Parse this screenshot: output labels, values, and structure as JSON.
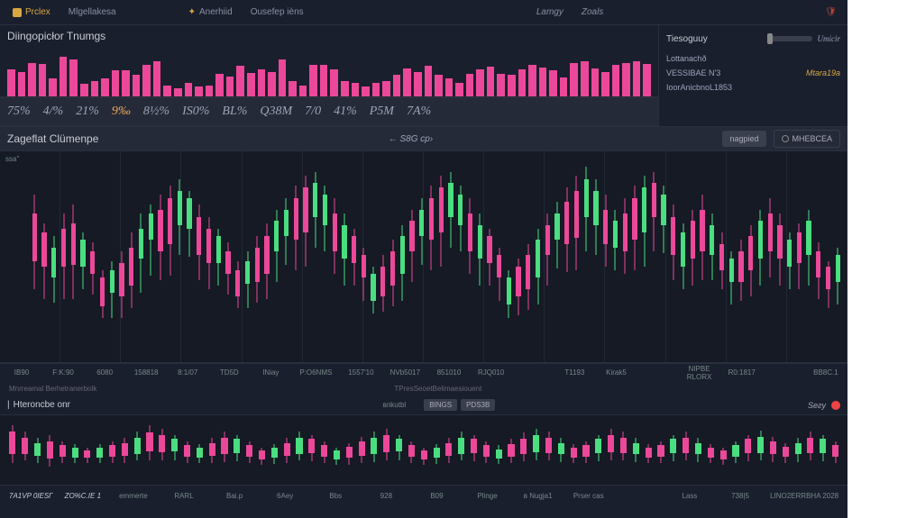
{
  "colors": {
    "bg": "#1a1f2e",
    "panel": "#151a25",
    "pink": "#ec4899",
    "green": "#4ade80",
    "accent": "#d8a840",
    "text": "#c8ccd4",
    "muted": "#888fa0"
  },
  "topbar": {
    "tabs": [
      {
        "label": "Prclex",
        "active": true
      },
      {
        "label": "Mlgellakesa",
        "active": false
      }
    ],
    "mid_tabs": [
      {
        "label": "Anerhiid",
        "icon": true
      },
      {
        "label": "Ousefep ièns",
        "icon": false
      }
    ],
    "right_tabs": [
      "Lamgy",
      "Zoals"
    ]
  },
  "section_title": "Diingopicłor Tnumgs",
  "volume_bars": [
    60,
    55,
    75,
    72,
    40,
    88,
    82,
    28,
    35,
    40,
    58,
    58,
    48,
    70,
    78,
    25,
    18,
    30,
    22,
    25,
    50,
    45,
    68,
    52,
    60,
    55,
    82,
    35,
    25,
    70,
    70,
    60,
    35,
    30,
    22,
    30,
    35,
    48,
    62,
    55,
    68,
    48,
    40,
    30,
    50,
    60,
    66,
    50,
    48,
    60,
    70,
    65,
    58,
    42,
    75,
    78,
    62,
    55,
    70,
    74,
    78,
    72
  ],
  "stats": [
    {
      "label": "75%",
      "hl": false
    },
    {
      "label": "4/%",
      "hl": false
    },
    {
      "label": "21%",
      "hl": false
    },
    {
      "label": "9‰",
      "hl": true
    },
    {
      "label": "8½%",
      "hl": false
    },
    {
      "label": "IS0%",
      "hl": false
    },
    {
      "label": "BL%",
      "hl": false
    },
    {
      "label": "Q38M",
      "hl": false
    },
    {
      "label": "7/0",
      "hl": false
    },
    {
      "label": "41%",
      "hl": false
    },
    {
      "label": "P5M",
      "hl": false
    },
    {
      "label": "7A%",
      "hl": false
    }
  ],
  "right_panel": {
    "header": "Tiesoguuy",
    "badge": "Umicìr",
    "items": [
      {
        "label": "Lottanachð",
        "value": ""
      },
      {
        "label": "VESSIBAE N'3",
        "value": "Mtara19a"
      },
      {
        "label": "IoorAnicbnoL1853",
        "value": ""
      }
    ]
  },
  "toolbar": {
    "left": "Zageflat Clümenpe",
    "mid": "← S8G  cр›",
    "btn1": "nagpied",
    "btn2": "MHEBCEA"
  },
  "main_chart": {
    "type": "candlestick",
    "y_label": "ssa”",
    "background": "#151a25",
    "grid_color": "#222836",
    "grid_columns": 14,
    "candles": [
      {
        "c": "pink",
        "wt": 20,
        "wh": 50,
        "bt": 30,
        "bh": 25
      },
      {
        "c": "pink",
        "wt": 35,
        "wh": 40,
        "bt": 40,
        "bh": 18
      },
      {
        "c": "green",
        "wt": 42,
        "wh": 35,
        "bt": 48,
        "bh": 16
      },
      {
        "c": "pink",
        "wt": 30,
        "wh": 45,
        "bt": 38,
        "bh": 20
      },
      {
        "c": "pink",
        "wt": 25,
        "wh": 50,
        "bt": 35,
        "bh": 22
      },
      {
        "c": "green",
        "wt": 40,
        "wh": 30,
        "bt": 44,
        "bh": 14
      },
      {
        "c": "pink",
        "wt": 45,
        "wh": 28,
        "bt": 50,
        "bh": 12
      },
      {
        "c": "pink",
        "wt": 60,
        "wh": 25,
        "bt": 64,
        "bh": 15
      },
      {
        "c": "green",
        "wt": 55,
        "wh": 30,
        "bt": 60,
        "bh": 12
      },
      {
        "c": "pink",
        "wt": 50,
        "wh": 35,
        "bt": 56,
        "bh": 18
      },
      {
        "c": "pink",
        "wt": 40,
        "wh": 40,
        "bt": 48,
        "bh": 20
      },
      {
        "c": "green",
        "wt": 30,
        "wh": 42,
        "bt": 38,
        "bh": 16
      },
      {
        "c": "green",
        "wt": 25,
        "wh": 38,
        "bt": 30,
        "bh": 14
      },
      {
        "c": "pink",
        "wt": 20,
        "wh": 45,
        "bt": 28,
        "bh": 22
      },
      {
        "c": "pink",
        "wt": 15,
        "wh": 48,
        "bt": 22,
        "bh": 24
      },
      {
        "c": "green",
        "wt": 12,
        "wh": 40,
        "bt": 18,
        "bh": 18
      },
      {
        "c": "green",
        "wt": 18,
        "wh": 35,
        "bt": 22,
        "bh": 16
      },
      {
        "c": "pink",
        "wt": 25,
        "wh": 40,
        "bt": 32,
        "bh": 20
      },
      {
        "c": "pink",
        "wt": 32,
        "wh": 38,
        "bt": 38,
        "bh": 18
      },
      {
        "c": "green",
        "wt": 38,
        "wh": 30,
        "bt": 42,
        "bh": 14
      },
      {
        "c": "pink",
        "wt": 45,
        "wh": 28,
        "bt": 50,
        "bh": 12
      },
      {
        "c": "pink",
        "wt": 55,
        "wh": 25,
        "bt": 60,
        "bh": 14
      },
      {
        "c": "green",
        "wt": 50,
        "wh": 30,
        "bt": 55,
        "bh": 12
      },
      {
        "c": "pink",
        "wt": 42,
        "wh": 35,
        "bt": 48,
        "bh": 18
      },
      {
        "c": "pink",
        "wt": 35,
        "wh": 40,
        "bt": 42,
        "bh": 20
      },
      {
        "c": "green",
        "wt": 28,
        "wh": 38,
        "bt": 34,
        "bh": 16
      },
      {
        "c": "green",
        "wt": 22,
        "wh": 35,
        "bt": 28,
        "bh": 14
      },
      {
        "c": "pink",
        "wt": 15,
        "wh": 45,
        "bt": 22,
        "bh": 22
      },
      {
        "c": "pink",
        "wt": 10,
        "wh": 48,
        "bt": 16,
        "bh": 24
      },
      {
        "c": "green",
        "wt": 8,
        "wh": 40,
        "bt": 14,
        "bh": 18
      },
      {
        "c": "green",
        "wt": 15,
        "wh": 35,
        "bt": 20,
        "bh": 16
      },
      {
        "c": "pink",
        "wt": 22,
        "wh": 40,
        "bt": 30,
        "bh": 20
      },
      {
        "c": "green",
        "wt": 30,
        "wh": 38,
        "bt": 36,
        "bh": 18
      },
      {
        "c": "pink",
        "wt": 38,
        "wh": 30,
        "bt": 42,
        "bh": 14
      },
      {
        "c": "pink",
        "wt": 48,
        "wh": 28,
        "bt": 52,
        "bh": 12
      },
      {
        "c": "green",
        "wt": 58,
        "wh": 25,
        "bt": 62,
        "bh": 14
      },
      {
        "c": "pink",
        "wt": 52,
        "wh": 30,
        "bt": 58,
        "bh": 16
      },
      {
        "c": "pink",
        "wt": 44,
        "wh": 35,
        "bt": 50,
        "bh": 18
      },
      {
        "c": "green",
        "wt": 36,
        "wh": 40,
        "bt": 42,
        "bh": 20
      },
      {
        "c": "pink",
        "wt": 28,
        "wh": 38,
        "bt": 34,
        "bh": 16
      },
      {
        "c": "green",
        "wt": 22,
        "wh": 35,
        "bt": 28,
        "bh": 14
      },
      {
        "c": "pink",
        "wt": 15,
        "wh": 45,
        "bt": 22,
        "bh": 22
      },
      {
        "c": "pink",
        "wt": 10,
        "wh": 48,
        "bt": 16,
        "bh": 24
      },
      {
        "c": "green",
        "wt": 8,
        "wh": 40,
        "bt": 14,
        "bh": 18
      },
      {
        "c": "green",
        "wt": 15,
        "wh": 35,
        "bt": 20,
        "bh": 16
      },
      {
        "c": "pink",
        "wt": 22,
        "wh": 40,
        "bt": 30,
        "bh": 20
      },
      {
        "c": "green",
        "wt": 30,
        "wh": 38,
        "bt": 36,
        "bh": 18
      },
      {
        "c": "pink",
        "wt": 38,
        "wh": 30,
        "bt": 42,
        "bh": 14
      },
      {
        "c": "pink",
        "wt": 48,
        "wh": 28,
        "bt": 52,
        "bh": 12
      },
      {
        "c": "green",
        "wt": 60,
        "wh": 25,
        "bt": 64,
        "bh": 14
      },
      {
        "c": "pink",
        "wt": 54,
        "wh": 30,
        "bt": 58,
        "bh": 16
      },
      {
        "c": "pink",
        "wt": 46,
        "wh": 35,
        "bt": 52,
        "bh": 18
      },
      {
        "c": "green",
        "wt": 38,
        "wh": 40,
        "bt": 44,
        "bh": 20
      },
      {
        "c": "pink",
        "wt": 30,
        "wh": 38,
        "bt": 36,
        "bh": 16
      },
      {
        "c": "green",
        "wt": 24,
        "wh": 35,
        "bt": 30,
        "bh": 14
      },
      {
        "c": "pink",
        "wt": 16,
        "wh": 45,
        "bt": 24,
        "bh": 22
      },
      {
        "c": "pink",
        "wt": 10,
        "wh": 50,
        "bt": 18,
        "bh": 25
      },
      {
        "c": "green",
        "wt": 5,
        "wh": 45,
        "bt": 12,
        "bh": 20
      },
      {
        "c": "green",
        "wt": 12,
        "wh": 40,
        "bt": 18,
        "bh": 18
      },
      {
        "c": "pink",
        "wt": 20,
        "wh": 38,
        "bt": 28,
        "bh": 18
      },
      {
        "c": "green",
        "wt": 28,
        "wh": 32,
        "bt": 34,
        "bh": 14
      },
      {
        "c": "pink",
        "wt": 22,
        "wh": 40,
        "bt": 30,
        "bh": 20
      },
      {
        "c": "pink",
        "wt": 15,
        "wh": 45,
        "bt": 22,
        "bh": 22
      },
      {
        "c": "green",
        "wt": 10,
        "wh": 48,
        "bt": 16,
        "bh": 24
      },
      {
        "c": "pink",
        "wt": 8,
        "wh": 42,
        "bt": 14,
        "bh": 18
      },
      {
        "c": "green",
        "wt": 15,
        "wh": 36,
        "bt": 20,
        "bh": 16
      },
      {
        "c": "pink",
        "wt": 25,
        "wh": 40,
        "bt": 32,
        "bh": 20
      },
      {
        "c": "green",
        "wt": 35,
        "wh": 35,
        "bt": 40,
        "bh": 18
      },
      {
        "c": "pink",
        "wt": 28,
        "wh": 40,
        "bt": 34,
        "bh": 20
      },
      {
        "c": "pink",
        "wt": 20,
        "wh": 45,
        "bt": 28,
        "bh": 22
      },
      {
        "c": "green",
        "wt": 30,
        "wh": 35,
        "bt": 36,
        "bh": 16
      },
      {
        "c": "pink",
        "wt": 40,
        "wh": 30,
        "bt": 46,
        "bh": 14
      },
      {
        "c": "green",
        "wt": 50,
        "wh": 28,
        "bt": 54,
        "bh": 12
      },
      {
        "c": "pink",
        "wt": 44,
        "wh": 32,
        "bt": 50,
        "bh": 16
      },
      {
        "c": "pink",
        "wt": 36,
        "wh": 38,
        "bt": 42,
        "bh": 18
      },
      {
        "c": "green",
        "wt": 28,
        "wh": 40,
        "bt": 34,
        "bh": 20
      },
      {
        "c": "pink",
        "wt": 22,
        "wh": 42,
        "bt": 30,
        "bh": 20
      },
      {
        "c": "pink",
        "wt": 30,
        "wh": 38,
        "bt": 36,
        "bh": 18
      },
      {
        "c": "green",
        "wt": 40,
        "wh": 30,
        "bt": 44,
        "bh": 14
      },
      {
        "c": "pink",
        "wt": 35,
        "wh": 35,
        "bt": 40,
        "bh": 16
      },
      {
        "c": "green",
        "wt": 28,
        "wh": 40,
        "bt": 34,
        "bh": 18
      },
      {
        "c": "pink",
        "wt": 45,
        "wh": 30,
        "bt": 50,
        "bh": 14
      },
      {
        "c": "pink",
        "wt": 55,
        "wh": 25,
        "bt": 58,
        "bh": 12
      },
      {
        "c": "green",
        "wt": 48,
        "wh": 30,
        "bt": 52,
        "bh": 14
      }
    ]
  },
  "xaxis_main": [
    "IB90",
    "F:K:90",
    "6080",
    "158818",
    "8:1/07",
    "TD5D",
    "INiay",
    "P:O6NMS",
    "1557'10",
    "NVb5017",
    "851010",
    "RJQ010",
    "",
    "T1193",
    "Kirak5",
    "",
    "NIPBE RLORX",
    "R0:1817",
    "",
    "BB8C.1"
  ],
  "footer_labels": {
    "left": "Mnrreamal Berhetranerbolk",
    "mid": "TPresSeoetВelіmaesiouent"
  },
  "panel2": {
    "title": "Hteroncbe onr",
    "mid_label": "впkutbl",
    "chips": [
      "BINGS",
      "PDS3B"
    ],
    "right_label": "Sегу"
  },
  "bottom_chart": {
    "type": "candlestick",
    "background": "#151a25",
    "candles": [
      {
        "c": "pink",
        "wt": 10,
        "wh": 60,
        "bt": 20,
        "bh": 35
      },
      {
        "c": "pink",
        "wt": 20,
        "wh": 45,
        "bt": 30,
        "bh": 25
      },
      {
        "c": "green",
        "wt": 30,
        "wh": 40,
        "bt": 38,
        "bh": 20
      },
      {
        "c": "pink",
        "wt": 25,
        "wh": 50,
        "bt": 35,
        "bh": 28
      },
      {
        "c": "pink",
        "wt": 35,
        "wh": 35,
        "bt": 42,
        "bh": 18
      },
      {
        "c": "green",
        "wt": 40,
        "wh": 30,
        "bt": 46,
        "bh": 15
      },
      {
        "c": "pink",
        "wt": 45,
        "wh": 25,
        "bt": 50,
        "bh": 12
      },
      {
        "c": "green",
        "wt": 40,
        "wh": 30,
        "bt": 46,
        "bh": 15
      },
      {
        "c": "pink",
        "wt": 35,
        "wh": 35,
        "bt": 42,
        "bh": 18
      },
      {
        "c": "pink",
        "wt": 30,
        "wh": 40,
        "bt": 38,
        "bh": 20
      },
      {
        "c": "green",
        "wt": 20,
        "wh": 45,
        "bt": 30,
        "bh": 25
      },
      {
        "c": "pink",
        "wt": 10,
        "wh": 55,
        "bt": 22,
        "bh": 30
      },
      {
        "c": "pink",
        "wt": 15,
        "wh": 50,
        "bt": 25,
        "bh": 28
      },
      {
        "c": "green",
        "wt": 25,
        "wh": 40,
        "bt": 32,
        "bh": 20
      },
      {
        "c": "pink",
        "wt": 35,
        "wh": 35,
        "bt": 42,
        "bh": 18
      },
      {
        "c": "green",
        "wt": 40,
        "wh": 30,
        "bt": 46,
        "bh": 15
      },
      {
        "c": "pink",
        "wt": 30,
        "wh": 40,
        "bt": 38,
        "bh": 20
      },
      {
        "c": "pink",
        "wt": 20,
        "wh": 48,
        "bt": 30,
        "bh": 25
      },
      {
        "c": "green",
        "wt": 25,
        "wh": 42,
        "bt": 32,
        "bh": 22
      },
      {
        "c": "pink",
        "wt": 35,
        "wh": 35,
        "bt": 42,
        "bh": 18
      },
      {
        "c": "pink",
        "wt": 45,
        "wh": 28,
        "bt": 50,
        "bh": 14
      },
      {
        "c": "green",
        "wt": 40,
        "wh": 32,
        "bt": 46,
        "bh": 16
      },
      {
        "c": "pink",
        "wt": 30,
        "wh": 40,
        "bt": 38,
        "bh": 20
      },
      {
        "c": "green",
        "wt": 20,
        "wh": 45,
        "bt": 30,
        "bh": 25
      },
      {
        "c": "pink",
        "wt": 25,
        "wh": 42,
        "bt": 32,
        "bh": 22
      },
      {
        "c": "pink",
        "wt": 35,
        "wh": 35,
        "bt": 42,
        "bh": 18
      },
      {
        "c": "green",
        "wt": 45,
        "wh": 28,
        "bt": 50,
        "bh": 14
      },
      {
        "c": "pink",
        "wt": 38,
        "wh": 35,
        "bt": 44,
        "bh": 18
      },
      {
        "c": "pink",
        "wt": 28,
        "wh": 42,
        "bt": 36,
        "bh": 22
      },
      {
        "c": "green",
        "wt": 20,
        "wh": 48,
        "bt": 30,
        "bh": 26
      },
      {
        "c": "pink",
        "wt": 15,
        "wh": 50,
        "bt": 25,
        "bh": 28
      },
      {
        "c": "green",
        "wt": 25,
        "wh": 40,
        "bt": 32,
        "bh": 20
      },
      {
        "c": "pink",
        "wt": 35,
        "wh": 35,
        "bt": 42,
        "bh": 18
      },
      {
        "c": "pink",
        "wt": 45,
        "wh": 28,
        "bt": 50,
        "bh": 14
      },
      {
        "c": "green",
        "wt": 40,
        "wh": 32,
        "bt": 46,
        "bh": 16
      },
      {
        "c": "pink",
        "wt": 30,
        "wh": 40,
        "bt": 38,
        "bh": 20
      },
      {
        "c": "green",
        "wt": 20,
        "wh": 45,
        "bt": 30,
        "bh": 25
      },
      {
        "c": "pink",
        "wt": 25,
        "wh": 42,
        "bt": 32,
        "bh": 22
      },
      {
        "c": "pink",
        "wt": 35,
        "wh": 35,
        "bt": 42,
        "bh": 18
      },
      {
        "c": "green",
        "wt": 42,
        "wh": 30,
        "bt": 48,
        "bh": 15
      },
      {
        "c": "pink",
        "wt": 32,
        "wh": 38,
        "bt": 40,
        "bh": 20
      },
      {
        "c": "pink",
        "wt": 22,
        "wh": 45,
        "bt": 32,
        "bh": 24
      },
      {
        "c": "green",
        "wt": 15,
        "wh": 50,
        "bt": 25,
        "bh": 28
      },
      {
        "c": "pink",
        "wt": 20,
        "wh": 45,
        "bt": 30,
        "bh": 24
      },
      {
        "c": "green",
        "wt": 30,
        "wh": 38,
        "bt": 38,
        "bh": 18
      },
      {
        "c": "pink",
        "wt": 40,
        "wh": 30,
        "bt": 46,
        "bh": 15
      },
      {
        "c": "pink",
        "wt": 35,
        "wh": 35,
        "bt": 42,
        "bh": 18
      },
      {
        "c": "green",
        "wt": 25,
        "wh": 42,
        "bt": 32,
        "bh": 22
      },
      {
        "c": "pink",
        "wt": 15,
        "wh": 50,
        "bt": 25,
        "bh": 28
      },
      {
        "c": "pink",
        "wt": 20,
        "wh": 45,
        "bt": 30,
        "bh": 24
      },
      {
        "c": "green",
        "wt": 30,
        "wh": 38,
        "bt": 38,
        "bh": 18
      },
      {
        "c": "pink",
        "wt": 40,
        "wh": 30,
        "bt": 46,
        "bh": 15
      },
      {
        "c": "pink",
        "wt": 35,
        "wh": 35,
        "bt": 42,
        "bh": 18
      },
      {
        "c": "green",
        "wt": 25,
        "wh": 42,
        "bt": 32,
        "bh": 22
      },
      {
        "c": "pink",
        "wt": 20,
        "wh": 45,
        "bt": 30,
        "bh": 24
      },
      {
        "c": "green",
        "wt": 30,
        "wh": 38,
        "bt": 38,
        "bh": 18
      },
      {
        "c": "pink",
        "wt": 40,
        "wh": 30,
        "bt": 46,
        "bh": 15
      },
      {
        "c": "pink",
        "wt": 45,
        "wh": 28,
        "bt": 50,
        "bh": 14
      },
      {
        "c": "green",
        "wt": 35,
        "wh": 35,
        "bt": 42,
        "bh": 18
      },
      {
        "c": "pink",
        "wt": 25,
        "wh": 42,
        "bt": 32,
        "bh": 22
      },
      {
        "c": "green",
        "wt": 18,
        "wh": 48,
        "bt": 28,
        "bh": 26
      },
      {
        "c": "pink",
        "wt": 28,
        "wh": 40,
        "bt": 36,
        "bh": 20
      },
      {
        "c": "pink",
        "wt": 38,
        "wh": 32,
        "bt": 44,
        "bh": 16
      },
      {
        "c": "green",
        "wt": 30,
        "wh": 38,
        "bt": 38,
        "bh": 18
      },
      {
        "c": "pink",
        "wt": 20,
        "wh": 45,
        "bt": 30,
        "bh": 24
      },
      {
        "c": "green",
        "wt": 25,
        "wh": 42,
        "bt": 32,
        "bh": 22
      },
      {
        "c": "pink",
        "wt": 35,
        "wh": 35,
        "bt": 42,
        "bh": 18
      }
    ]
  },
  "xaxis_bottom": [
    "7A1VP 0IESΓ",
    "ZO%C.IE 1",
    "emmerte",
    "RARL",
    "Bai.p",
    "6Aey",
    "Bbs",
    "928",
    "B09",
    "Рlinge",
    "в Nugja1",
    "Prser cas",
    "",
    "Lass",
    "738|5",
    "LINO2ERRBHA 2028"
  ]
}
